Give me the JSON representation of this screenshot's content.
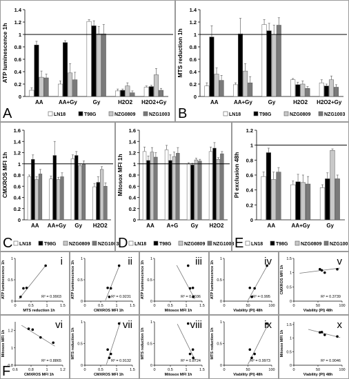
{
  "figure": {
    "background": "#ffffff",
    "border_color": "#999999"
  },
  "legend": {
    "entries": [
      {
        "name": "LN18",
        "color": "#ffffff"
      },
      {
        "name": "T98G",
        "color": "#000000"
      },
      {
        "name": "NZG0809",
        "color": "#c8c8c8"
      },
      {
        "name": "NZG1003",
        "color": "#7a7a7a"
      }
    ]
  },
  "chart_data": [
    {
      "type": "bar",
      "panel": "A",
      "ylabel": "ATP luminescence 1h",
      "ylim": [
        0,
        1.4
      ],
      "yticks": [
        "0",
        "0.2",
        "0.4",
        "0.6",
        "0.8",
        "1",
        "1.2",
        "1.4"
      ],
      "reference_line": 1,
      "categories": [
        "AA",
        "AA+Gy",
        "Gy",
        "H2O2",
        "H2O2+Gy"
      ],
      "series": [
        {
          "name": "LN18",
          "values": [
            0.1,
            0.2,
            1.21,
            0.09,
            0.15
          ],
          "errors": [
            0.04,
            0.05,
            0.03,
            0.03,
            0.02
          ]
        },
        {
          "name": "T98G",
          "values": [
            0.83,
            0.87,
            1.14,
            0.1,
            0.16
          ],
          "errors": [
            0.06,
            0.03,
            0.08,
            0.02,
            0.02
          ]
        },
        {
          "name": "NZG0809",
          "values": [
            0.31,
            0.38,
            1.01,
            0.17,
            0.35
          ],
          "errors": [
            0.1,
            0.15,
            0.12,
            0.05,
            0.1
          ]
        },
        {
          "name": "NZG1003",
          "values": [
            0.3,
            0.27,
            1.01,
            0.06,
            0.1
          ],
          "errors": [
            0.06,
            0.12,
            0.15,
            0.03,
            0.03
          ]
        }
      ]
    },
    {
      "type": "bar",
      "panel": "B",
      "ylabel": "MTS reduction 1h",
      "ylim": [
        0,
        1.4
      ],
      "yticks": [
        "0",
        "0.2",
        "0.4",
        "0.6",
        "0.8",
        "1",
        "1.2",
        "1.4"
      ],
      "reference_line": 1,
      "categories": [
        "AA",
        "AA+Gy",
        "Gy",
        "H2O2",
        "H2O2+Gy"
      ],
      "series": [
        {
          "name": "LN18",
          "values": [
            0.17,
            0.19,
            1.16,
            0.27,
            0.22
          ],
          "errors": [
            0.05,
            0.03,
            0.08,
            0.02,
            0.05
          ]
        },
        {
          "name": "T98G",
          "values": [
            0.96,
            1.01,
            1.06,
            0.19,
            0.17
          ],
          "errors": [
            0.18,
            0.25,
            0.12,
            0.04,
            0.03
          ]
        },
        {
          "name": "NZG0809",
          "values": [
            0.36,
            0.41,
            1.0,
            0.2,
            0.27
          ],
          "errors": [
            0.1,
            0.12,
            0.15,
            0.05,
            0.06
          ]
        },
        {
          "name": "NZG1003",
          "values": [
            0.26,
            0.22,
            1.15,
            0.13,
            0.15
          ],
          "errors": [
            0.08,
            0.1,
            0.12,
            0.03,
            0.04
          ]
        }
      ]
    },
    {
      "type": "bar",
      "panel": "C",
      "ylabel": "CMXROS MFI 1h",
      "ylim": [
        0,
        1.6
      ],
      "yticks": [
        "0",
        "0.2",
        "0.4",
        "0.6",
        "0.8",
        "1",
        "1.2",
        "1.4",
        "1.6"
      ],
      "reference_line": 1,
      "categories": [
        "AA",
        "AA+Gy",
        "Gy",
        "H2O2"
      ],
      "series": [
        {
          "name": "LN18",
          "values": [
            0.77,
            0.73,
            1.09,
            0.59
          ],
          "errors": [
            0.03,
            0.05,
            0.07,
            0.06
          ]
        },
        {
          "name": "T98G",
          "values": [
            1.08,
            1.15,
            1.15,
            0.67
          ],
          "errors": [
            0.08,
            0.25,
            0.07,
            0.1
          ]
        },
        {
          "name": "NZG0809",
          "values": [
            0.72,
            0.72,
            0.97,
            0.9
          ],
          "errors": [
            0.05,
            0.04,
            0.03,
            0.05
          ]
        },
        {
          "name": "NZG1003",
          "values": [
            0.82,
            0.77,
            1.0,
            0.6
          ],
          "errors": [
            0.08,
            0.07,
            0.05,
            0.06
          ]
        }
      ]
    },
    {
      "type": "bar",
      "panel": "D",
      "ylabel": "Mitosox MFI 1h",
      "ylim": [
        0,
        1.6
      ],
      "yticks": [
        "0",
        "0.2",
        "0.4",
        "0.6",
        "0.8",
        "1",
        "1.2",
        "1.4",
        "1.6"
      ],
      "reference_line": 1,
      "categories": [
        "AA",
        "A+G",
        "Gy",
        "H2O2"
      ],
      "series": [
        {
          "name": "LN18",
          "values": [
            1.22,
            1.25,
            1.0,
            1.22
          ],
          "errors": [
            0.08,
            0.08,
            0.02,
            0.08
          ]
        },
        {
          "name": "T98G",
          "values": [
            1.06,
            1.06,
            0.98,
            1.28
          ],
          "errors": [
            0.08,
            0.1,
            0.03,
            0.1
          ]
        },
        {
          "name": "NZG0809",
          "values": [
            1.21,
            1.13,
            1.07,
            1.08
          ],
          "errors": [
            0.08,
            0.08,
            0.03,
            0.03
          ]
        },
        {
          "name": "NZG1003",
          "values": [
            1.12,
            1.19,
            1.05,
            1.18
          ],
          "errors": [
            0.08,
            0.1,
            0.03,
            0.04
          ]
        }
      ]
    },
    {
      "type": "bar",
      "panel": "E",
      "ylabel": "PI exclusion 48h",
      "ylim": [
        0,
        1.2
      ],
      "yticks": [
        "0",
        "0.2",
        "0.4",
        "0.6",
        "0.8",
        "1",
        "1.2"
      ],
      "reference_line": 1,
      "categories": [
        "AA",
        "AA+Gy",
        "Gy"
      ],
      "series": [
        {
          "name": "LN18",
          "values": [
            0.58,
            0.47,
            0.43
          ],
          "errors": [
            0.06,
            0.05,
            0.04
          ]
        },
        {
          "name": "T98G",
          "values": [
            0.9,
            0.51,
            0.55
          ],
          "errors": [
            0.06,
            0.1,
            0.08
          ]
        },
        {
          "name": "NZG0809",
          "values": [
            0.54,
            0.5,
            0.93
          ],
          "errors": [
            0.1,
            0.1,
            0.02
          ]
        },
        {
          "name": "NZG1003",
          "values": [
            0.64,
            0.48,
            0.55
          ],
          "errors": [
            0.06,
            0.1,
            0.05
          ]
        }
      ]
    },
    {
      "type": "scatter",
      "panel": "F",
      "roman": "i",
      "xlabel": "MTS reduction 1h",
      "ylabel": "ATP luminescence 1h",
      "xlim": [
        0,
        1.5
      ],
      "ylim": [
        0,
        1
      ],
      "xticks": [
        "0",
        "0.5",
        "1",
        "1.5"
      ],
      "yticks": [
        "0",
        "0.5",
        "1"
      ],
      "r2": "R² = 0.9903",
      "points": [
        [
          0.17,
          0.1
        ],
        [
          0.36,
          0.31
        ],
        [
          0.26,
          0.3
        ],
        [
          0.96,
          0.83
        ]
      ],
      "trend": [
        [
          0.12,
          0.05
        ],
        [
          0.98,
          0.85
        ]
      ]
    },
    {
      "type": "scatter",
      "panel": "F",
      "roman": "ii",
      "xlabel": "CMXROS MFI 1h",
      "ylabel": "ATP luminescence 1h",
      "xlim": [
        0,
        1.5
      ],
      "ylim": [
        0,
        1
      ],
      "xticks": [
        "0",
        "0.5",
        "1",
        "1.5"
      ],
      "yticks": [
        "0",
        "0.5",
        "1"
      ],
      "r2": "R² = 0.9231",
      "points": [
        [
          0.77,
          0.1
        ],
        [
          0.72,
          0.31
        ],
        [
          0.82,
          0.3
        ],
        [
          1.08,
          0.83
        ]
      ],
      "trend": [
        [
          0.65,
          0.02
        ],
        [
          1.1,
          0.85
        ]
      ]
    },
    {
      "type": "scatter",
      "panel": "F",
      "roman": "iii",
      "xlabel": "Mitosox MFI 1h",
      "ylabel": "ATP luminescence 1h",
      "xlim": [
        0,
        1.5
      ],
      "ylim": [
        0,
        1
      ],
      "xticks": [
        "0",
        "0.5",
        "1",
        "1.5"
      ],
      "yticks": [
        "0",
        "0.5",
        "1"
      ],
      "r2": "R² = 0.8036",
      "points": [
        [
          1.22,
          0.1
        ],
        [
          1.21,
          0.31
        ],
        [
          1.12,
          0.3
        ],
        [
          1.06,
          0.83
        ]
      ],
      "trend": [
        [
          0.7,
          0.84
        ],
        [
          1.27,
          0.05
        ]
      ]
    },
    {
      "type": "scatter",
      "panel": "F",
      "roman": "iv",
      "xlabel": "Viability (PI) 48h",
      "ylabel": "ATP luminescence 1h",
      "xlim": [
        0,
        100
      ],
      "ylim": [
        0,
        1
      ],
      "xticks": [
        "0",
        "50",
        "100"
      ],
      "yticks": [
        "0",
        "0.5",
        "1"
      ],
      "r2": "R² = 0.995",
      "points": [
        [
          58,
          0.1
        ],
        [
          54,
          0.31
        ],
        [
          64,
          0.3
        ],
        [
          90,
          0.83
        ]
      ],
      "trend": [
        [
          50,
          0.02
        ],
        [
          92,
          0.86
        ]
      ]
    },
    {
      "type": "scatter",
      "panel": "F",
      "roman": "v",
      "xlabel": "Viability (PI) 48h",
      "ylabel": "CMXROS MFI 1h",
      "xlim": [
        0,
        100
      ],
      "ylim": [
        0,
        1.5
      ],
      "xticks": [
        "0",
        "50",
        "100"
      ],
      "yticks": [
        "0",
        "0.5",
        "1",
        "1.5"
      ],
      "r2": "R² = 0.3739",
      "points": [
        [
          58,
          1.08
        ],
        [
          54,
          1.12
        ],
        [
          64,
          1.0
        ],
        [
          90,
          1.12
        ]
      ],
      "trend": [
        [
          12,
          0.98
        ],
        [
          95,
          1.16
        ]
      ]
    },
    {
      "type": "scatter",
      "panel": "F",
      "roman": "vi",
      "xlabel": "CMXROS MFI 1h",
      "ylabel": "Mitosox MFI 1h",
      "xlim": [
        0.6,
        1.2
      ],
      "ylim": [
        0.8,
        1.3
      ],
      "xticks": [
        "0.6",
        "0.8",
        "1",
        "1.2"
      ],
      "yticks": [
        "0.8",
        "1",
        "1.2"
      ],
      "r2": "R² = 0.8865",
      "points": [
        [
          0.77,
          1.22
        ],
        [
          0.82,
          1.21
        ],
        [
          0.92,
          1.12
        ],
        [
          1.08,
          1.06
        ]
      ],
      "trend": [
        [
          0.68,
          1.26
        ],
        [
          1.1,
          1.02
        ]
      ]
    },
    {
      "type": "scatter",
      "panel": "F",
      "roman": "vii",
      "xlabel": "CMXROS MFI 1h",
      "ylabel": "MTS reduction 1h",
      "xlim": [
        0,
        1.5
      ],
      "ylim": [
        0,
        1
      ],
      "xticks": [
        "0",
        "0.5",
        "1",
        "1.5"
      ],
      "yticks": [
        "0",
        "0.5",
        "1"
      ],
      "r2": "R² = 0.9132",
      "points": [
        [
          0.77,
          0.17
        ],
        [
          0.72,
          0.36
        ],
        [
          0.82,
          0.26
        ],
        [
          1.08,
          0.96
        ]
      ],
      "trend": [
        [
          0.68,
          0.02
        ],
        [
          1.12,
          1.0
        ]
      ]
    },
    {
      "type": "scatter",
      "panel": "F",
      "roman": "viii",
      "xlabel": "Mitosox MFI 1h",
      "ylabel": "MTS reduction 1h",
      "xlim": [
        0,
        1.5
      ],
      "ylim": [
        0,
        1
      ],
      "xticks": [
        "0",
        "0.5",
        "1",
        "1.5"
      ],
      "yticks": [
        "0",
        "0.5",
        "1"
      ],
      "r2": "R² = 0.8724",
      "points": [
        [
          1.22,
          0.17
        ],
        [
          1.21,
          0.36
        ],
        [
          1.12,
          0.26
        ],
        [
          1.06,
          0.96
        ]
      ],
      "trend": [
        [
          0.72,
          0.95
        ],
        [
          1.28,
          0.12
        ]
      ]
    },
    {
      "type": "scatter",
      "panel": "F",
      "roman": "ix",
      "xlabel": "Viability (PI) 48h",
      "ylabel": "MTS reduction 1h",
      "xlim": [
        0,
        100
      ],
      "ylim": [
        0,
        1
      ],
      "xticks": [
        "0",
        "50",
        "100"
      ],
      "yticks": [
        "0",
        "0.5",
        "1"
      ],
      "r2": "R² = 0.9973",
      "points": [
        [
          58,
          0.17
        ],
        [
          54,
          0.36
        ],
        [
          64,
          0.26
        ],
        [
          90,
          0.96
        ]
      ],
      "trend": [
        [
          50,
          0.02
        ],
        [
          94,
          0.98
        ]
      ]
    },
    {
      "type": "scatter",
      "panel": "F",
      "roman": "x",
      "xlabel": "Viability (PI) 48h",
      "ylabel": "Mitosox MFI 1h",
      "xlim": [
        0,
        100
      ],
      "ylim": [
        0,
        1.6
      ],
      "xticks": [
        "0",
        "50",
        "100"
      ],
      "yticks": [
        "0",
        "0.5",
        "1",
        "1.5"
      ],
      "r2": "R² = 0.9046",
      "points": [
        [
          58,
          1.22
        ],
        [
          54,
          1.21
        ],
        [
          64,
          1.12
        ],
        [
          90,
          1.06
        ]
      ],
      "trend": [
        [
          30,
          1.32
        ],
        [
          96,
          1.02
        ]
      ]
    }
  ]
}
